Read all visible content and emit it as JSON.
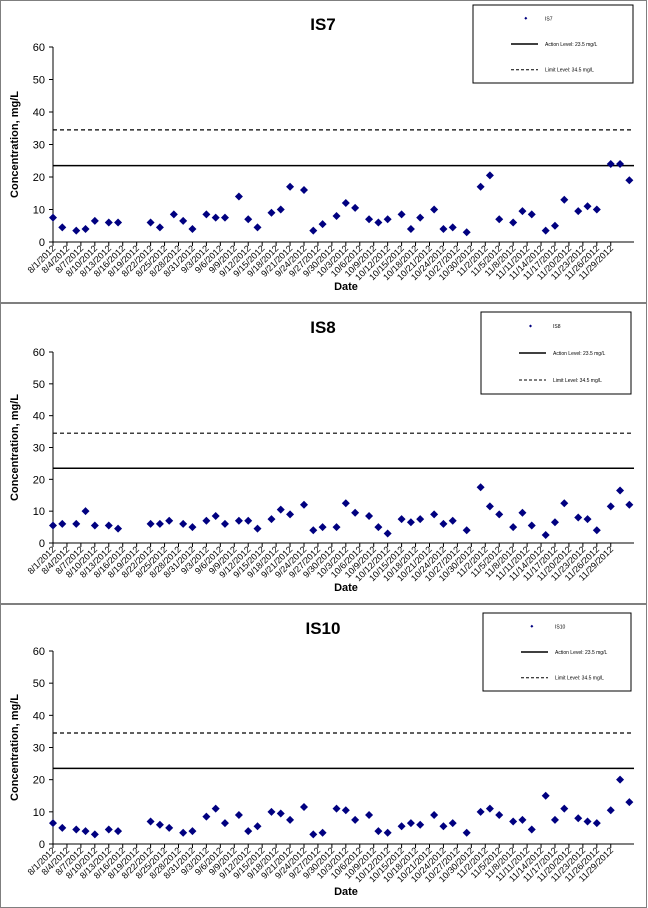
{
  "chart_data": [
    {
      "type": "scatter",
      "title": "IS7",
      "xlabel": "Date",
      "ylabel": "Concentration, mg/L",
      "ylim": [
        0,
        60
      ],
      "yticks": [
        "0",
        "10",
        "20",
        "30",
        "40",
        "50",
        "60"
      ],
      "categories": [
        "8/1/2012",
        "8/4/2012",
        "8/7/2012",
        "8/10/2012",
        "8/13/2012",
        "8/16/2012",
        "8/19/2012",
        "8/22/2012",
        "8/25/2012",
        "8/28/2012",
        "8/31/2012",
        "9/3/2012",
        "9/6/2012",
        "9/9/2012",
        "9/12/2012",
        "9/15/2012",
        "9/18/2012",
        "9/21/2012",
        "9/24/2012",
        "9/27/2012",
        "9/30/2012",
        "10/3/2012",
        "10/6/2012",
        "10/9/2012",
        "10/12/2012",
        "10/15/2012",
        "10/18/2012",
        "10/21/2012",
        "10/24/2012",
        "10/27/2012",
        "10/30/2012",
        "11/2/2012",
        "11/5/2012",
        "11/8/2012",
        "11/11/2012",
        "11/14/2012",
        "11/17/2012",
        "11/20/2012",
        "11/23/2012",
        "11/26/2012",
        "11/29/2012"
      ],
      "lines": {
        "action_level": 23.5,
        "limit": 34.5
      },
      "series": [
        {
          "name": "IS7",
          "color": "#000080",
          "points": [
            [
              "8/1/2012",
              7.5
            ],
            [
              "8/3/2012",
              4.5
            ],
            [
              "8/6/2012",
              3.5
            ],
            [
              "8/8/2012",
              4
            ],
            [
              "8/10/2012",
              6.5
            ],
            [
              "8/13/2012",
              6
            ],
            [
              "8/15/2012",
              6
            ],
            [
              "8/22/2012",
              6
            ],
            [
              "8/24/2012",
              4.5
            ],
            [
              "8/27/2012",
              8.5
            ],
            [
              "8/29/2012",
              6.5
            ],
            [
              "8/31/2012",
              4
            ],
            [
              "9/3/2012",
              8.5
            ],
            [
              "9/5/2012",
              7.5
            ],
            [
              "9/7/2012",
              7.5
            ],
            [
              "9/10/2012",
              14
            ],
            [
              "9/12/2012",
              7
            ],
            [
              "9/14/2012",
              4.5
            ],
            [
              "9/17/2012",
              9
            ],
            [
              "9/19/2012",
              10
            ],
            [
              "9/21/2012",
              17
            ],
            [
              "9/24/2012",
              16
            ],
            [
              "9/26/2012",
              3.5
            ],
            [
              "9/28/2012",
              5.5
            ],
            [
              "10/1/2012",
              8
            ],
            [
              "10/3/2012",
              12
            ],
            [
              "10/5/2012",
              10.5
            ],
            [
              "10/8/2012",
              7
            ],
            [
              "10/10/2012",
              6
            ],
            [
              "10/12/2012",
              7
            ],
            [
              "10/15/2012",
              8.5
            ],
            [
              "10/17/2012",
              4
            ],
            [
              "10/19/2012",
              7.5
            ],
            [
              "10/22/2012",
              10
            ],
            [
              "10/24/2012",
              4
            ],
            [
              "10/26/2012",
              4.5
            ],
            [
              "10/29/2012",
              3
            ],
            [
              "11/1/2012",
              17
            ],
            [
              "11/3/2012",
              20.5
            ],
            [
              "11/5/2012",
              7
            ],
            [
              "11/8/2012",
              6
            ],
            [
              "11/10/2012",
              9.5
            ],
            [
              "11/12/2012",
              8.5
            ],
            [
              "11/15/2012",
              3.5
            ],
            [
              "11/17/2012",
              5
            ],
            [
              "11/19/2012",
              13
            ],
            [
              "11/22/2012",
              9.5
            ],
            [
              "11/24/2012",
              11
            ],
            [
              "11/26/2012",
              10
            ],
            [
              "11/29/2012",
              24
            ],
            [
              "12/1/2012",
              24
            ],
            [
              "12/3/2012",
              19
            ]
          ]
        }
      ],
      "legend": {
        "placement": "top-right",
        "items": [
          "IS7",
          "Action Level: 23.5 mg/L",
          "Limit Level: 34.5 mg/L"
        ]
      }
    },
    {
      "type": "scatter",
      "title": "IS8",
      "xlabel": "Date",
      "ylabel": "Concentration, mg/L",
      "ylim": [
        0,
        60
      ],
      "yticks": [
        "0",
        "10",
        "20",
        "30",
        "40",
        "50",
        "60"
      ],
      "categories": [
        "8/1/2012",
        "8/4/2012",
        "8/7/2012",
        "8/10/2012",
        "8/13/2012",
        "8/16/2012",
        "8/19/2012",
        "8/22/2012",
        "8/25/2012",
        "8/28/2012",
        "8/31/2012",
        "9/3/2012",
        "9/6/2012",
        "9/9/2012",
        "9/12/2012",
        "9/15/2012",
        "9/18/2012",
        "9/21/2012",
        "9/24/2012",
        "9/27/2012",
        "9/30/2012",
        "10/3/2012",
        "10/6/2012",
        "10/9/2012",
        "10/12/2012",
        "10/15/2012",
        "10/18/2012",
        "10/21/2012",
        "10/24/2012",
        "10/27/2012",
        "10/30/2012",
        "11/2/2012",
        "11/5/2012",
        "11/8/2012",
        "11/11/2012",
        "11/14/2012",
        "11/17/2012",
        "11/20/2012",
        "11/23/2012",
        "11/26/2012",
        "11/29/2012"
      ],
      "lines": {
        "action_level": 23.5,
        "limit": 34.5
      },
      "series": [
        {
          "name": "IS8",
          "color": "#000080",
          "points": [
            [
              "8/1/2012",
              5.5
            ],
            [
              "8/3/2012",
              6
            ],
            [
              "8/6/2012",
              6
            ],
            [
              "8/8/2012",
              10
            ],
            [
              "8/10/2012",
              5.5
            ],
            [
              "8/13/2012",
              5.5
            ],
            [
              "8/15/2012",
              4.5
            ],
            [
              "8/22/2012",
              6
            ],
            [
              "8/24/2012",
              6
            ],
            [
              "8/26/2012",
              7
            ],
            [
              "8/29/2012",
              6
            ],
            [
              "8/31/2012",
              5
            ],
            [
              "9/3/2012",
              7
            ],
            [
              "9/5/2012",
              8.5
            ],
            [
              "9/7/2012",
              6
            ],
            [
              "9/10/2012",
              7
            ],
            [
              "9/12/2012",
              7
            ],
            [
              "9/14/2012",
              4.5
            ],
            [
              "9/17/2012",
              7.5
            ],
            [
              "9/19/2012",
              10.5
            ],
            [
              "9/21/2012",
              9
            ],
            [
              "9/24/2012",
              12
            ],
            [
              "9/26/2012",
              4
            ],
            [
              "9/28/2012",
              5
            ],
            [
              "10/1/2012",
              5
            ],
            [
              "10/3/2012",
              12.5
            ],
            [
              "10/5/2012",
              9.5
            ],
            [
              "10/8/2012",
              8.5
            ],
            [
              "10/10/2012",
              5
            ],
            [
              "10/12/2012",
              3
            ],
            [
              "10/15/2012",
              7.5
            ],
            [
              "10/17/2012",
              6.5
            ],
            [
              "10/19/2012",
              7.5
            ],
            [
              "10/22/2012",
              9
            ],
            [
              "10/24/2012",
              6
            ],
            [
              "10/26/2012",
              7
            ],
            [
              "10/29/2012",
              4
            ],
            [
              "11/1/2012",
              17.5
            ],
            [
              "11/3/2012",
              11.5
            ],
            [
              "11/5/2012",
              9
            ],
            [
              "11/8/2012",
              5
            ],
            [
              "11/10/2012",
              9.5
            ],
            [
              "11/12/2012",
              5.5
            ],
            [
              "11/15/2012",
              2.5
            ],
            [
              "11/17/2012",
              6.5
            ],
            [
              "11/19/2012",
              12.5
            ],
            [
              "11/22/2012",
              8
            ],
            [
              "11/24/2012",
              7.5
            ],
            [
              "11/26/2012",
              4
            ],
            [
              "11/29/2012",
              11.5
            ],
            [
              "12/1/2012",
              16.5
            ],
            [
              "12/3/2012",
              12
            ]
          ]
        }
      ],
      "legend": {
        "placement": "top-right",
        "items": [
          "IS8",
          "Action Level: 23.5 mg/L",
          "Limit Level: 34.5 mg/L"
        ]
      }
    },
    {
      "type": "scatter",
      "title": "IS10",
      "xlabel": "Date",
      "ylabel": "Concentration, mg/L",
      "ylim": [
        0,
        60
      ],
      "yticks": [
        "0",
        "10",
        "20",
        "30",
        "40",
        "50",
        "60"
      ],
      "categories": [
        "8/1/2012",
        "8/4/2012",
        "8/7/2012",
        "8/10/2012",
        "8/13/2012",
        "8/16/2012",
        "8/19/2012",
        "8/22/2012",
        "8/25/2012",
        "8/28/2012",
        "8/31/2012",
        "9/3/2012",
        "9/6/2012",
        "9/9/2012",
        "9/12/2012",
        "9/15/2012",
        "9/18/2012",
        "9/21/2012",
        "9/24/2012",
        "9/27/2012",
        "9/30/2012",
        "10/3/2012",
        "10/6/2012",
        "10/9/2012",
        "10/12/2012",
        "10/15/2012",
        "10/18/2012",
        "10/21/2012",
        "10/24/2012",
        "10/27/2012",
        "10/30/2012",
        "11/2/2012",
        "11/5/2012",
        "11/8/2012",
        "11/11/2012",
        "11/14/2012",
        "11/17/2012",
        "11/20/2012",
        "11/23/2012",
        "11/26/2012",
        "11/29/2012"
      ],
      "lines": {
        "action_level": 23.5,
        "limit": 34.5
      },
      "series": [
        {
          "name": "IS10",
          "color": "#000080",
          "points": [
            [
              "8/1/2012",
              6.5
            ],
            [
              "8/3/2012",
              5
            ],
            [
              "8/6/2012",
              4.5
            ],
            [
              "8/8/2012",
              4
            ],
            [
              "8/10/2012",
              3
            ],
            [
              "8/13/2012",
              4.5
            ],
            [
              "8/15/2012",
              4
            ],
            [
              "8/22/2012",
              7
            ],
            [
              "8/24/2012",
              6
            ],
            [
              "8/26/2012",
              5
            ],
            [
              "8/29/2012",
              3.5
            ],
            [
              "8/31/2012",
              4
            ],
            [
              "9/3/2012",
              8.5
            ],
            [
              "9/5/2012",
              11
            ],
            [
              "9/7/2012",
              6.5
            ],
            [
              "9/10/2012",
              9
            ],
            [
              "9/12/2012",
              4
            ],
            [
              "9/14/2012",
              5.5
            ],
            [
              "9/17/2012",
              10
            ],
            [
              "9/19/2012",
              9.5
            ],
            [
              "9/21/2012",
              7.5
            ],
            [
              "9/24/2012",
              11.5
            ],
            [
              "9/26/2012",
              3
            ],
            [
              "9/28/2012",
              3.5
            ],
            [
              "10/1/2012",
              11
            ],
            [
              "10/3/2012",
              10.5
            ],
            [
              "10/5/2012",
              7.5
            ],
            [
              "10/8/2012",
              9
            ],
            [
              "10/10/2012",
              4
            ],
            [
              "10/12/2012",
              3.5
            ],
            [
              "10/15/2012",
              5.5
            ],
            [
              "10/17/2012",
              6.5
            ],
            [
              "10/19/2012",
              6
            ],
            [
              "10/22/2012",
              9
            ],
            [
              "10/24/2012",
              5.5
            ],
            [
              "10/26/2012",
              6.5
            ],
            [
              "10/29/2012",
              3.5
            ],
            [
              "11/1/2012",
              10
            ],
            [
              "11/3/2012",
              11
            ],
            [
              "11/5/2012",
              9
            ],
            [
              "11/8/2012",
              7
            ],
            [
              "11/10/2012",
              7.5
            ],
            [
              "11/12/2012",
              4.5
            ],
            [
              "11/15/2012",
              15
            ],
            [
              "11/17/2012",
              7.5
            ],
            [
              "11/19/2012",
              11
            ],
            [
              "11/22/2012",
              8
            ],
            [
              "11/24/2012",
              7
            ],
            [
              "11/26/2012",
              6.5
            ],
            [
              "11/29/2012",
              10.5
            ],
            [
              "12/1/2012",
              20
            ],
            [
              "12/3/2012",
              13
            ]
          ]
        }
      ],
      "legend": {
        "placement": "top-right",
        "items": [
          "IS10",
          "Action Level: 23.5 mg/L",
          "Limit Level: 34.5 mg/L"
        ]
      }
    }
  ]
}
